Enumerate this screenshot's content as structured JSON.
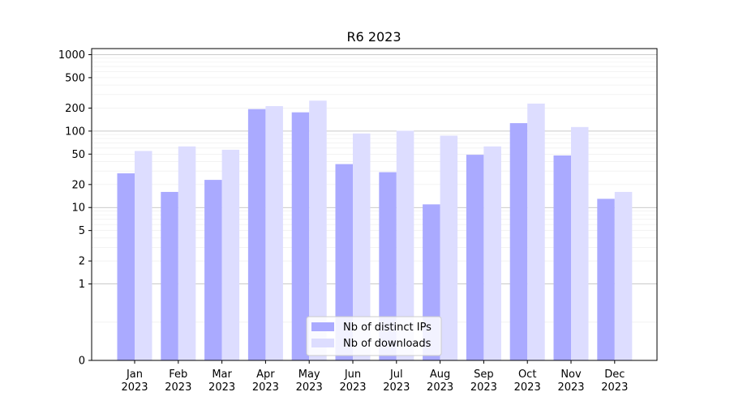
{
  "chart_data": {
    "type": "bar",
    "title": "R6 2023",
    "xlabel": "",
    "ylabel": "",
    "yscale": "symlog",
    "ylim": [
      0,
      1200
    ],
    "y_ticks": [
      0,
      1,
      2,
      5,
      10,
      20,
      50,
      100,
      200,
      500,
      1000
    ],
    "y_tick_labels": [
      "0",
      "1",
      "2",
      "5",
      "10",
      "20",
      "50",
      "100",
      "200",
      "500",
      "1000"
    ],
    "categories": [
      [
        "Jan",
        "2023"
      ],
      [
        "Feb",
        "2023"
      ],
      [
        "Mar",
        "2023"
      ],
      [
        "Apr",
        "2023"
      ],
      [
        "May",
        "2023"
      ],
      [
        "Jun",
        "2023"
      ],
      [
        "Jul",
        "2023"
      ],
      [
        "Aug",
        "2023"
      ],
      [
        "Sep",
        "2023"
      ],
      [
        "Oct",
        "2023"
      ],
      [
        "Nov",
        "2023"
      ],
      [
        "Dec",
        "2023"
      ]
    ],
    "series": [
      {
        "name": "Nb of distinct IPs",
        "color": "#aaaaff",
        "values": [
          28,
          16,
          23,
          194,
          176,
          37,
          29,
          11,
          49,
          127,
          48,
          13
        ]
      },
      {
        "name": "Nb of downloads",
        "color": "#ddddff",
        "values": [
          55,
          63,
          57,
          212,
          250,
          93,
          101,
          87,
          63,
          229,
          113,
          16
        ]
      }
    ],
    "grid": "horizontal",
    "legend_position": "bottom-center"
  }
}
